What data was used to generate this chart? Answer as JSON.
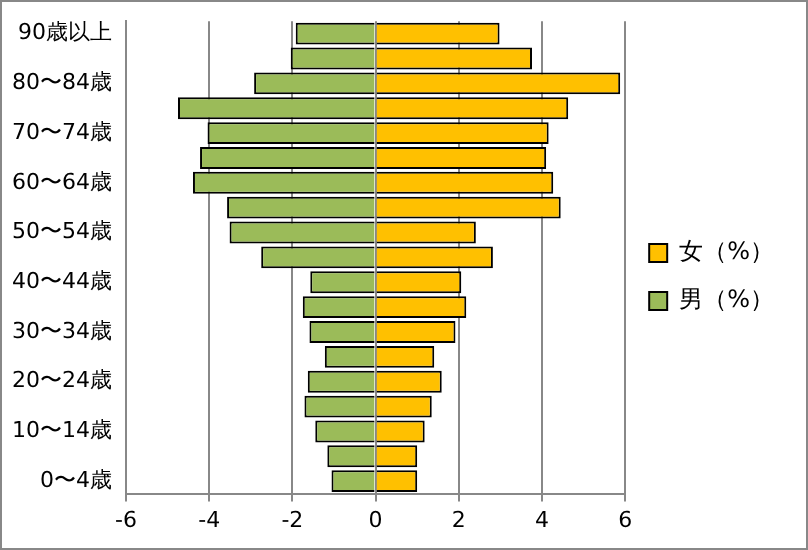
{
  "chart_data": {
    "type": "bar",
    "orientation": "horizontal",
    "stacked": true,
    "categories": [
      "90歳以上",
      null,
      "80〜84歳",
      null,
      "70〜74歳",
      null,
      "60〜64歳",
      null,
      "50〜54歳",
      null,
      "40〜44歳",
      null,
      "30〜34歳",
      null,
      "20〜24歳",
      null,
      "10〜14歳",
      null,
      "0〜4歳"
    ],
    "series": [
      {
        "name": "女（%）",
        "color": "#ffc000",
        "values": [
          2.98,
          3.76,
          5.88,
          4.63,
          4.16,
          4.1,
          4.27,
          4.45,
          2.41,
          2.82,
          2.06,
          2.18,
          1.92,
          1.41,
          1.59,
          1.35,
          1.18,
          1.0,
          1.0
        ]
      },
      {
        "name": "男（%）",
        "color": "#9bbb59",
        "values": [
          -1.92,
          -2.04,
          -2.92,
          -4.75,
          -4.04,
          -4.22,
          -4.39,
          -3.57,
          -3.51,
          -2.75,
          -1.57,
          -1.75,
          -1.59,
          -1.22,
          -1.63,
          -1.71,
          -1.45,
          -1.16,
          -1.06
        ]
      }
    ],
    "xlim": [
      -6,
      6
    ],
    "xticks": [
      -6,
      -4,
      -2,
      0,
      2,
      4,
      6
    ],
    "grid": "x",
    "legend": "right"
  }
}
